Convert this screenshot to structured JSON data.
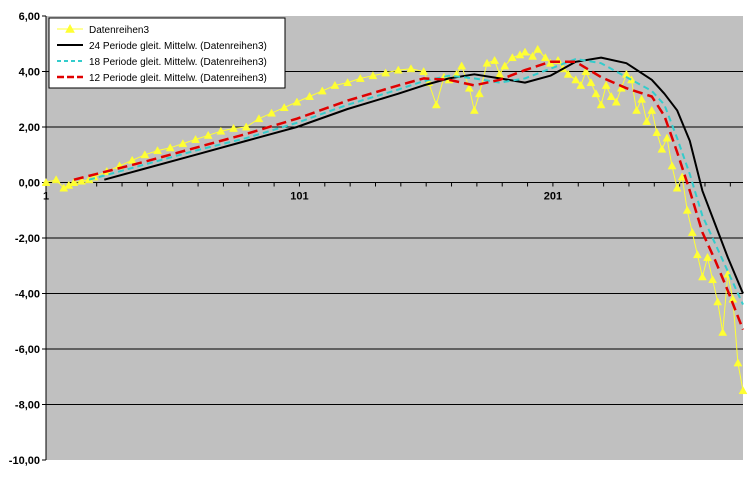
{
  "colors": {
    "plot_bg": "#c0c0c0",
    "gridline": "#000000",
    "series3": "#ffff33",
    "ma24": "#000000",
    "ma18": "#33cccc",
    "ma12": "#e00000",
    "legend_bg": "#ffffff"
  },
  "chart_data": {
    "type": "line",
    "title": "",
    "xlabel": "",
    "ylabel": "",
    "ylim": [
      -10,
      6
    ],
    "xlim": [
      1,
      276
    ],
    "grid": true,
    "legend_position": "top-left",
    "y_tick_labels": [
      "6,00",
      "4,00",
      "2,00",
      "0,00",
      "-2,00",
      "-4,00",
      "-6,00",
      "-8,00",
      "-10,00"
    ],
    "x_tick_labels": [
      "1",
      "101",
      "201"
    ],
    "series": [
      {
        "name": "Datenreihen3",
        "style": "line-triangle-markers",
        "x": [
          1,
          5,
          8,
          10,
          12,
          15,
          18,
          20,
          25,
          30,
          35,
          40,
          45,
          50,
          55,
          60,
          65,
          70,
          75,
          80,
          85,
          90,
          95,
          100,
          105,
          110,
          115,
          120,
          125,
          130,
          135,
          140,
          145,
          150,
          152,
          155,
          158,
          160,
          163,
          165,
          168,
          170,
          172,
          175,
          178,
          180,
          182,
          185,
          188,
          190,
          193,
          195,
          198,
          200,
          203,
          205,
          207,
          210,
          212,
          214,
          216,
          218,
          220,
          222,
          224,
          226,
          228,
          230,
          232,
          234,
          236,
          238,
          240,
          242,
          244,
          246,
          248,
          250,
          252,
          254,
          256,
          258,
          260,
          262,
          264,
          266,
          268,
          270,
          272,
          274,
          276
        ],
        "values": [
          0.0,
          0.1,
          -0.2,
          -0.1,
          0.0,
          0.05,
          0.1,
          0.2,
          0.4,
          0.6,
          0.8,
          1.0,
          1.15,
          1.25,
          1.4,
          1.55,
          1.7,
          1.85,
          1.95,
          2.0,
          2.3,
          2.5,
          2.7,
          2.9,
          3.1,
          3.3,
          3.5,
          3.6,
          3.75,
          3.85,
          3.95,
          4.05,
          4.1,
          4.0,
          3.6,
          2.8,
          3.8,
          3.7,
          3.9,
          4.2,
          3.4,
          2.6,
          3.2,
          4.3,
          4.4,
          3.9,
          4.2,
          4.5,
          4.6,
          4.7,
          4.55,
          4.8,
          4.5,
          4.3,
          4.4,
          4.1,
          3.9,
          3.7,
          3.5,
          4.0,
          3.6,
          3.2,
          2.8,
          3.5,
          3.1,
          2.9,
          3.4,
          3.9,
          3.7,
          2.6,
          3.0,
          2.2,
          2.6,
          1.8,
          1.2,
          1.6,
          0.6,
          -0.2,
          0.2,
          -1.0,
          -1.8,
          -2.6,
          -3.4,
          -2.7,
          -3.5,
          -4.3,
          -5.4,
          -3.3,
          -4.2,
          -6.5,
          -7.5
        ]
      },
      {
        "name": "24 Periode gleit. Mittelw. (Datenreihen3)",
        "style": "solid",
        "x": [
          24,
          40,
          60,
          80,
          100,
          120,
          140,
          150,
          160,
          170,
          180,
          190,
          200,
          210,
          220,
          230,
          240,
          245,
          250,
          255,
          260,
          265,
          270,
          276
        ],
        "values": [
          0.1,
          0.5,
          1.0,
          1.5,
          2.0,
          2.65,
          3.2,
          3.5,
          3.75,
          3.9,
          3.75,
          3.6,
          3.85,
          4.35,
          4.5,
          4.3,
          3.7,
          3.2,
          2.6,
          1.5,
          -0.3,
          -1.5,
          -2.7,
          -4.0
        ]
      },
      {
        "name": "18 Periode gleit. Mittelw. (Datenreihen3)",
        "style": "dashed",
        "x": [
          18,
          40,
          60,
          80,
          100,
          120,
          140,
          150,
          160,
          170,
          180,
          190,
          200,
          210,
          220,
          230,
          240,
          245,
          250,
          255,
          260,
          265,
          270,
          276
        ],
        "values": [
          0.1,
          0.65,
          1.15,
          1.6,
          2.15,
          2.8,
          3.35,
          3.65,
          3.85,
          3.75,
          3.6,
          3.75,
          4.1,
          4.45,
          4.3,
          3.8,
          3.3,
          2.8,
          1.6,
          0.3,
          -1.2,
          -2.2,
          -3.2,
          -4.4
        ]
      },
      {
        "name": "12 Periode gleit. Mittelw. (Datenreihen3)",
        "style": "long-dashed",
        "x": [
          12,
          40,
          60,
          80,
          100,
          120,
          140,
          150,
          160,
          170,
          180,
          190,
          200,
          210,
          220,
          230,
          240,
          245,
          250,
          255,
          260,
          265,
          270,
          276
        ],
        "values": [
          0.1,
          0.75,
          1.25,
          1.75,
          2.3,
          2.95,
          3.5,
          3.75,
          3.7,
          3.5,
          3.7,
          4.05,
          4.35,
          4.35,
          3.8,
          3.4,
          3.1,
          2.4,
          1.1,
          -0.3,
          -1.8,
          -2.8,
          -3.9,
          -5.3
        ]
      }
    ]
  }
}
